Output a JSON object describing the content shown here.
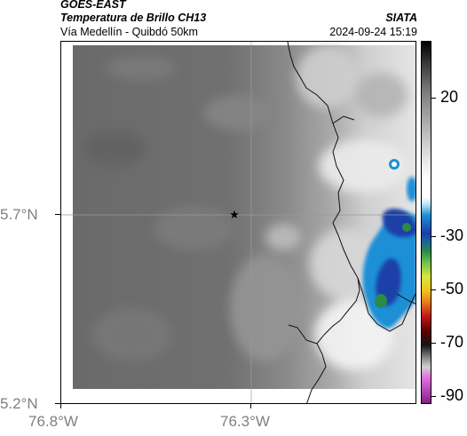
{
  "header": {
    "satellite": "GOES-EAST",
    "product": "Temperatura de Brillo CH13",
    "region": "Vía Medellín - Quibdó 50km",
    "agency": "SIATA",
    "datetime": "2024-09-24 15:19"
  },
  "map": {
    "lat_labels": [
      "5.7°N",
      "5.2°N"
    ],
    "lon_labels": [
      "76.8°W",
      "76.3°W"
    ],
    "marker_icon": "star-icon"
  },
  "colorbar": {
    "labels": [
      "20",
      "-30",
      "-50",
      "-70",
      "-90"
    ],
    "colors": {
      "warm_gray": "#6e6e6e",
      "cold_white": "#f2f2f2",
      "blue": "#1e8fd6",
      "deep_blue": "#1a3fa8",
      "green": "#2a8a4a",
      "black": "#111111",
      "magenta": "#c040c0"
    }
  }
}
